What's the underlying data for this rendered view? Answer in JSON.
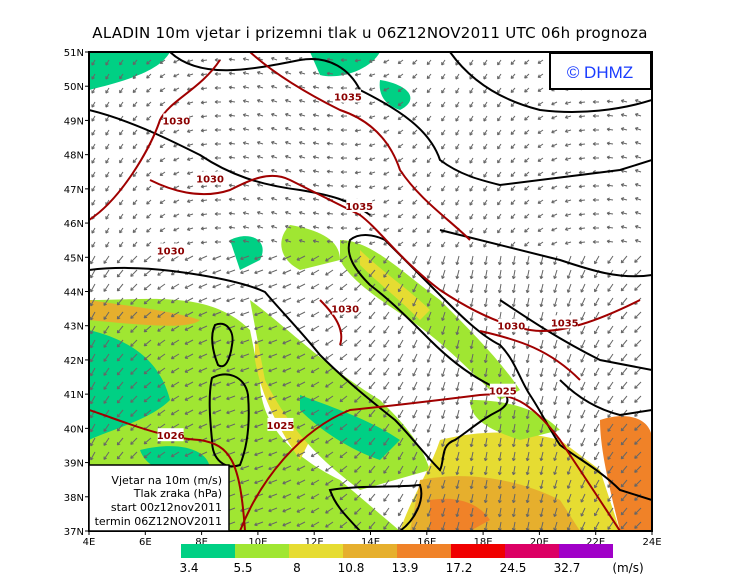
{
  "title": "ALADIN 10m vjetar i prizemni tlak u 06Z12NOV2011 UTC 06h prognoza",
  "logo": "© DHMZ",
  "map": {
    "lon_range": [
      4,
      24
    ],
    "lat_range": [
      37,
      51
    ],
    "lon_ticks": [
      "4E",
      "6E",
      "8E",
      "10E",
      "12E",
      "14E",
      "16E",
      "18E",
      "20E",
      "22E",
      "24E"
    ],
    "lat_ticks": [
      "37N",
      "38N",
      "39N",
      "40N",
      "41N",
      "42N",
      "43N",
      "44N",
      "45N",
      "46N",
      "47N",
      "48N",
      "49N",
      "50N",
      "51N"
    ],
    "isobar_color": "#a00000",
    "isobar_labels": [
      {
        "text": "1035",
        "lon": 13.2,
        "lat": 49.7
      },
      {
        "text": "1030",
        "lon": 7.1,
        "lat": 49.0
      },
      {
        "text": "1030",
        "lon": 8.3,
        "lat": 47.3
      },
      {
        "text": "1035",
        "lon": 13.6,
        "lat": 46.5
      },
      {
        "text": "1030",
        "lon": 6.9,
        "lat": 45.2
      },
      {
        "text": "1030",
        "lon": 13.1,
        "lat": 43.5
      },
      {
        "text": "1030",
        "lon": 19.0,
        "lat": 43.0
      },
      {
        "text": "1035",
        "lon": 20.9,
        "lat": 43.1
      },
      {
        "text": "1025",
        "lon": 18.7,
        "lat": 41.1
      },
      {
        "text": "1026",
        "lon": 6.9,
        "lat": 39.8
      },
      {
        "text": "1025",
        "lon": 10.8,
        "lat": 40.1
      }
    ]
  },
  "info_box": {
    "line1": "Vjetar na 10m (m/s)",
    "line2": "Tlak zraka (hPa)",
    "line3": "start 00z12nov2011",
    "line4": "termin 06Z12NOV2011"
  },
  "colorbar": {
    "unit": "(m/s)",
    "labels": [
      "3.4",
      "5.5",
      "8",
      "10.8",
      "13.9",
      "17.2",
      "24.5",
      "32.7"
    ],
    "colors": [
      "#00d084",
      "#a0e632",
      "#e6dc32",
      "#e6af2d",
      "#f08228",
      "#f00000",
      "#dc0064",
      "#a000c8"
    ]
  }
}
